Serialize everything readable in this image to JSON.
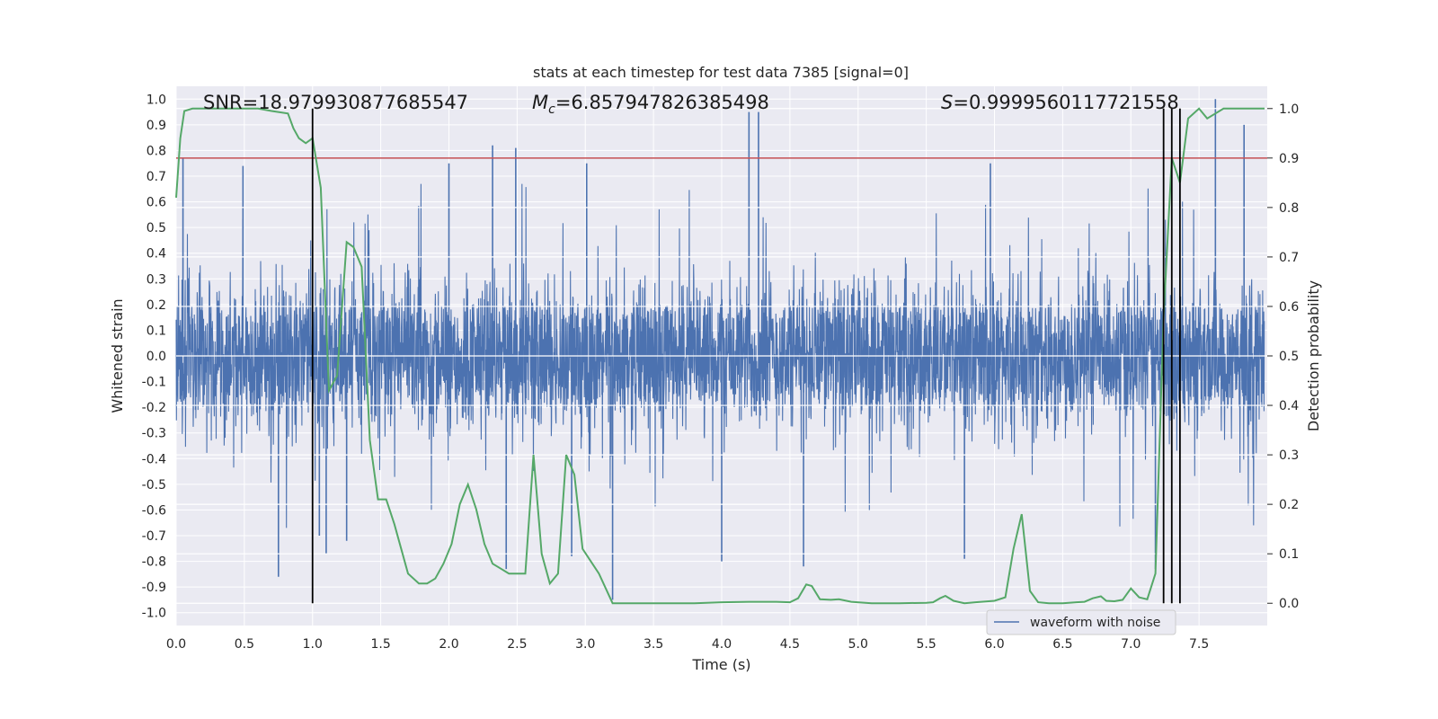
{
  "chart_data": {
    "type": "line",
    "title": "stats at each timestep for test data 7385 [signal=0]",
    "xlabel": "Time (s)",
    "ylabel": "Whitened strain",
    "y2label": "Detection probability",
    "xlim": [
      0.0,
      8.0
    ],
    "ylim": [
      -1.05,
      1.05
    ],
    "y2lim": [
      -0.045,
      1.045
    ],
    "xticks": [
      "0.0",
      "0.5",
      "1.0",
      "1.5",
      "2.0",
      "2.5",
      "3.0",
      "3.5",
      "4.0",
      "4.5",
      "5.0",
      "5.5",
      "6.0",
      "6.5",
      "7.0",
      "7.5"
    ],
    "yticks": [
      "1.0",
      "0.9",
      "0.8",
      "0.7",
      "0.6",
      "0.5",
      "0.4",
      "0.3",
      "0.2",
      "0.1",
      "0.0",
      "-0.1",
      "-0.2",
      "-0.3",
      "-0.4",
      "-0.5",
      "-0.6",
      "-0.7",
      "-0.8",
      "-0.9",
      "-1.0"
    ],
    "y2ticks": [
      "1.0",
      "0.9",
      "0.8",
      "0.7",
      "0.6",
      "0.5",
      "0.4",
      "0.3",
      "0.2",
      "0.1",
      "0.0"
    ],
    "grid": true,
    "legend_position": "lower-right",
    "annotations": {
      "snr_text": "SNR=18.979930877685547",
      "mc_symbol": "M",
      "mc_sub": "c",
      "mc_value": "=6.857947826385498",
      "s_symbol": "S",
      "s_value": "=0.9999560117721558"
    },
    "series": [
      {
        "name": "waveform with noise",
        "axis": "left",
        "color": "#4c72b0",
        "sample_rate": 2048,
        "noise_envelope": {
          "typical_min": -0.42,
          "typical_max": 0.42,
          "spike_max": 0.95,
          "spike_min": -0.95
        },
        "spikes": [
          {
            "x": 0.05,
            "y": 0.77
          },
          {
            "x": 0.49,
            "y": 0.74
          },
          {
            "x": 0.75,
            "y": -0.86
          },
          {
            "x": 1.05,
            "y": -0.7
          },
          {
            "x": 1.1,
            "y": -0.77
          },
          {
            "x": 1.25,
            "y": -0.72
          },
          {
            "x": 2.0,
            "y": 0.75
          },
          {
            "x": 2.32,
            "y": 0.82
          },
          {
            "x": 2.42,
            "y": -0.83
          },
          {
            "x": 2.49,
            "y": 0.81
          },
          {
            "x": 2.9,
            "y": -0.78
          },
          {
            "x": 3.01,
            "y": 0.75
          },
          {
            "x": 3.2,
            "y": -0.95
          },
          {
            "x": 4.0,
            "y": -0.8
          },
          {
            "x": 4.2,
            "y": 0.95
          },
          {
            "x": 4.27,
            "y": 0.95
          },
          {
            "x": 4.6,
            "y": -0.82
          },
          {
            "x": 5.78,
            "y": -0.79
          },
          {
            "x": 5.97,
            "y": 0.75
          },
          {
            "x": 7.18,
            "y": -0.83
          },
          {
            "x": 7.62,
            "y": 1.0
          },
          {
            "x": 7.83,
            "y": 0.9
          }
        ]
      },
      {
        "name": "",
        "axis": "right",
        "color": "#55a868",
        "x": [
          0.0,
          0.03,
          0.06,
          0.12,
          0.2,
          0.3,
          0.4,
          0.5,
          0.6,
          0.7,
          0.82,
          0.86,
          0.9,
          0.95,
          1.0,
          1.06,
          1.12,
          1.18,
          1.25,
          1.3,
          1.36,
          1.42,
          1.48,
          1.54,
          1.6,
          1.65,
          1.7,
          1.78,
          1.84,
          1.9,
          1.96,
          2.02,
          2.08,
          2.14,
          2.2,
          2.26,
          2.32,
          2.38,
          2.44,
          2.5,
          2.56,
          2.62,
          2.68,
          2.74,
          2.8,
          2.86,
          2.92,
          2.98,
          3.1,
          3.2,
          3.4,
          3.6,
          3.8,
          4.0,
          4.2,
          4.4,
          4.5,
          4.56,
          4.62,
          4.66,
          4.72,
          4.8,
          4.86,
          4.95,
          5.1,
          5.3,
          5.5,
          5.55,
          5.6,
          5.64,
          5.7,
          5.78,
          5.86,
          6.0,
          6.08,
          6.14,
          6.2,
          6.26,
          6.32,
          6.4,
          6.5,
          6.6,
          6.66,
          6.72,
          6.78,
          6.82,
          6.88,
          6.94,
          7.0,
          7.06,
          7.12,
          7.18,
          7.24,
          7.3,
          7.36,
          7.42,
          7.5,
          7.56,
          7.62,
          7.68,
          7.74,
          7.8,
          7.98
        ],
        "values": [
          0.82,
          0.94,
          0.995,
          1.0,
          1.0,
          1.0,
          1.0,
          1.0,
          1.0,
          0.995,
          0.99,
          0.96,
          0.94,
          0.93,
          0.94,
          0.84,
          0.43,
          0.46,
          0.73,
          0.72,
          0.68,
          0.33,
          0.21,
          0.21,
          0.16,
          0.11,
          0.06,
          0.04,
          0.04,
          0.05,
          0.08,
          0.12,
          0.2,
          0.24,
          0.19,
          0.12,
          0.08,
          0.07,
          0.06,
          0.06,
          0.06,
          0.3,
          0.1,
          0.04,
          0.06,
          0.3,
          0.26,
          0.11,
          0.06,
          0.0,
          0.0,
          0.0,
          0.0,
          0.002,
          0.003,
          0.003,
          0.002,
          0.01,
          0.038,
          0.035,
          0.008,
          0.007,
          0.008,
          0.003,
          0.0,
          0.0,
          0.001,
          0.002,
          0.01,
          0.015,
          0.005,
          0.0,
          0.002,
          0.005,
          0.012,
          0.11,
          0.18,
          0.025,
          0.002,
          0.0,
          0.0,
          0.002,
          0.003,
          0.01,
          0.014,
          0.005,
          0.004,
          0.007,
          0.03,
          0.012,
          0.008,
          0.06,
          0.58,
          0.9,
          0.85,
          0.98,
          1.0,
          0.98,
          0.99,
          1.0,
          1.0,
          1.0,
          1.0
        ]
      }
    ],
    "threshold_line": {
      "axis": "right",
      "value": 0.9,
      "color": "#c44e52"
    },
    "vertical_markers": {
      "color": "#000000",
      "x": [
        1.0,
        7.24,
        7.3,
        7.36
      ],
      "y_range": [
        0.0,
        1.0
      ]
    }
  }
}
